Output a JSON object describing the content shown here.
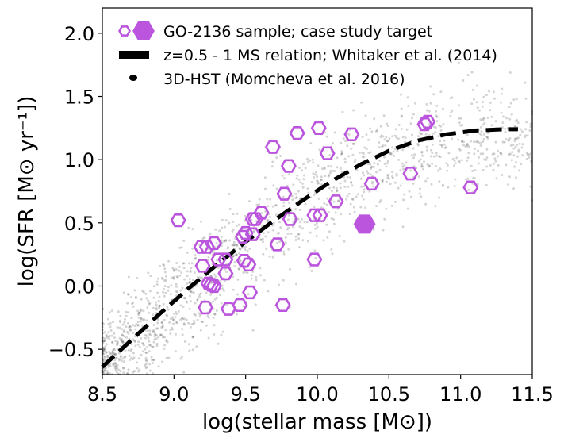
{
  "chart_data": {
    "type": "scatter",
    "xlabel": "log(stellar mass [M⊙])",
    "ylabel": "log(SFR [M⊙ yr⁻¹])",
    "xlim": [
      8.5,
      11.5
    ],
    "ylim": [
      -0.7,
      2.2
    ],
    "x_ticks": [
      8.5,
      9.0,
      9.5,
      10.0,
      10.5,
      11.0,
      11.5
    ],
    "x_tick_labels": [
      "8.5",
      "9.0",
      "9.5",
      "10.0",
      "10.5",
      "11.0",
      "11.5"
    ],
    "y_ticks": [
      -0.5,
      0.0,
      0.5,
      1.0,
      1.5,
      2.0
    ],
    "y_tick_labels": [
      "−0.5",
      "0.0",
      "0.5",
      "1.0",
      "1.5",
      "2.0"
    ],
    "grid": false,
    "legend_position": "top-left",
    "colors": {
      "sample": "#bb55dd",
      "relation": "#000000",
      "background": "#000000"
    },
    "legend": [
      {
        "label": "GO-2136 sample; case study target",
        "marker": "hexagon"
      },
      {
        "label": "z=0.5 - 1 MS relation; Whitaker et al. (2014)",
        "marker": "dashed-line"
      },
      {
        "label": "3D-HST (Momcheva et al. 2016)",
        "marker": "dot"
      }
    ],
    "series": [
      {
        "name": "GO-2136 sample",
        "x": [
          9.03,
          9.19,
          9.23,
          9.28,
          9.31,
          9.36,
          9.2,
          9.24,
          9.26,
          9.28,
          9.36,
          9.22,
          9.38,
          9.46,
          9.5,
          9.55,
          9.49,
          9.52,
          9.55,
          9.57,
          9.61,
          9.53,
          9.48,
          9.69,
          9.72,
          9.77,
          9.8,
          9.86,
          9.81,
          9.76,
          9.98,
          10.01,
          9.98,
          10.02,
          10.07,
          10.13,
          10.24,
          10.38,
          10.65,
          10.75,
          10.77,
          11.07
        ],
        "y": [
          0.52,
          0.31,
          0.31,
          0.34,
          0.21,
          0.21,
          0.16,
          0.02,
          0.01,
          0.0,
          0.1,
          -0.17,
          -0.18,
          -0.15,
          0.42,
          0.41,
          0.2,
          0.17,
          0.53,
          0.53,
          0.58,
          -0.05,
          0.39,
          1.1,
          0.33,
          0.73,
          0.95,
          1.21,
          0.53,
          -0.15,
          0.56,
          1.25,
          0.21,
          0.56,
          1.05,
          0.67,
          1.2,
          0.81,
          0.89,
          1.28,
          1.3,
          0.78
        ]
      },
      {
        "name": "case study target",
        "x": [
          10.33
        ],
        "y": [
          0.49
        ]
      },
      {
        "name": "z=0.5 - 1 MS relation",
        "x": [
          8.5,
          8.7,
          8.9,
          9.1,
          9.3,
          9.5,
          9.7,
          9.9,
          10.1,
          10.3,
          10.5,
          10.7,
          10.9,
          11.1,
          11.3,
          11.4
        ],
        "y": [
          -0.64,
          -0.43,
          -0.22,
          -0.02,
          0.17,
          0.35,
          0.52,
          0.68,
          0.83,
          0.96,
          1.07,
          1.15,
          1.2,
          1.23,
          1.24,
          1.24
        ]
      }
    ]
  }
}
